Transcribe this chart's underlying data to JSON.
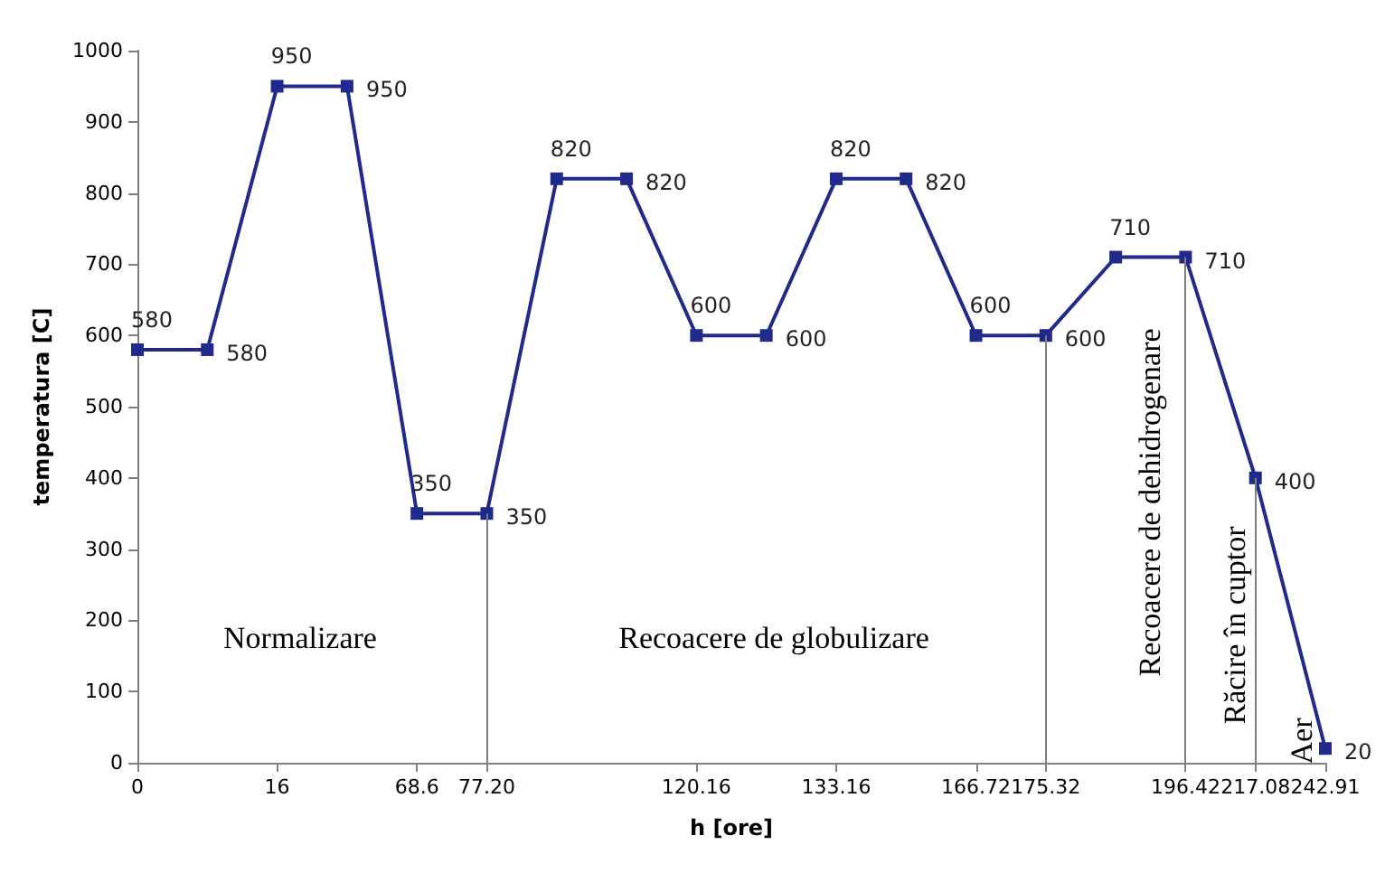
{
  "chart_data": {
    "type": "line",
    "xlabel": "h [ore]",
    "ylabel": "temperatura [C]",
    "categories": [
      "0",
      null,
      "16",
      null,
      "68.6",
      "77.20",
      null,
      null,
      "120.16",
      null,
      "133.16",
      null,
      "166.72",
      "175.32",
      null,
      "196.42",
      "217.08",
      "242.91"
    ],
    "series": [
      {
        "color": "#1f2a8c",
        "values": [
          580,
          580,
          950,
          950,
          350,
          350,
          820,
          820,
          600,
          600,
          820,
          820,
          600,
          600,
          710,
          710,
          400,
          20
        ]
      }
    ],
    "ylim": [
      0,
      1000
    ],
    "yticks": [
      0,
      100,
      200,
      300,
      400,
      500,
      600,
      700,
      800,
      900,
      1000
    ],
    "grid": false,
    "marker": "square",
    "line_style": "solid",
    "data_labels": true,
    "ref_lines": [
      {
        "axis": "x",
        "value": "77.20",
        "color": "#7f7f7f"
      },
      {
        "axis": "x",
        "value": "175.32",
        "color": "#7f7f7f"
      },
      {
        "axis": "x",
        "value": "196.42",
        "color": "#7f7f7f"
      },
      {
        "axis": "x",
        "value": "217.08",
        "color": "#7f7f7f"
      }
    ],
    "annotations": [
      "Normalizare",
      "Recoacere de globulizare",
      "Recoacere de dehidrogenare",
      "Răcire în cuptor",
      "Aer"
    ]
  }
}
